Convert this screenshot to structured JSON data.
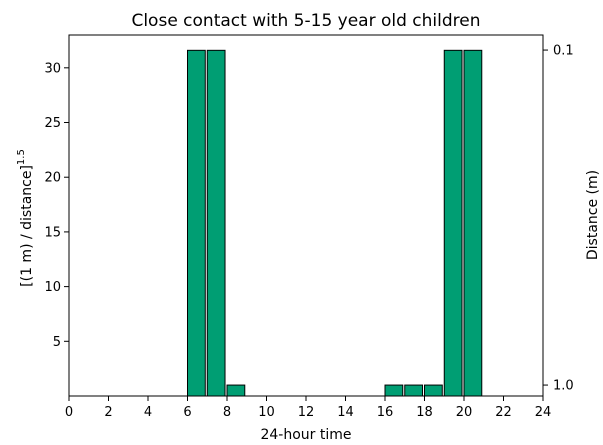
{
  "chart_data": {
    "type": "bar",
    "title": "Close contact with 5-15 year old children",
    "xlabel": "24-hour time",
    "ylabel_main": "[(1 m) / distance]",
    "ylabel_sup": "1.5",
    "ylabel_right": "Distance (m)",
    "xlim": [
      0,
      24
    ],
    "ylim": [
      0,
      33
    ],
    "x_ticks": [
      0,
      2,
      4,
      6,
      8,
      10,
      12,
      14,
      16,
      18,
      20,
      22,
      24
    ],
    "y_ticks": [
      5,
      10,
      15,
      20,
      25,
      30
    ],
    "right_ticks": [
      {
        "label": "0.1",
        "distance_m": 0.1
      },
      {
        "label": "1.0",
        "distance_m": 1.0
      }
    ],
    "bar_width": 0.9,
    "bar_color": "#009e73",
    "bar_edge_color": "#000000",
    "bars": [
      {
        "x": 6.0,
        "value": 31.6
      },
      {
        "x": 7.0,
        "value": 31.6
      },
      {
        "x": 8.0,
        "value": 1.0
      },
      {
        "x": 16.0,
        "value": 1.0
      },
      {
        "x": 17.0,
        "value": 1.0
      },
      {
        "x": 18.0,
        "value": 1.0
      },
      {
        "x": 19.0,
        "value": 31.6
      },
      {
        "x": 20.0,
        "value": 31.6
      }
    ],
    "grid": false
  }
}
